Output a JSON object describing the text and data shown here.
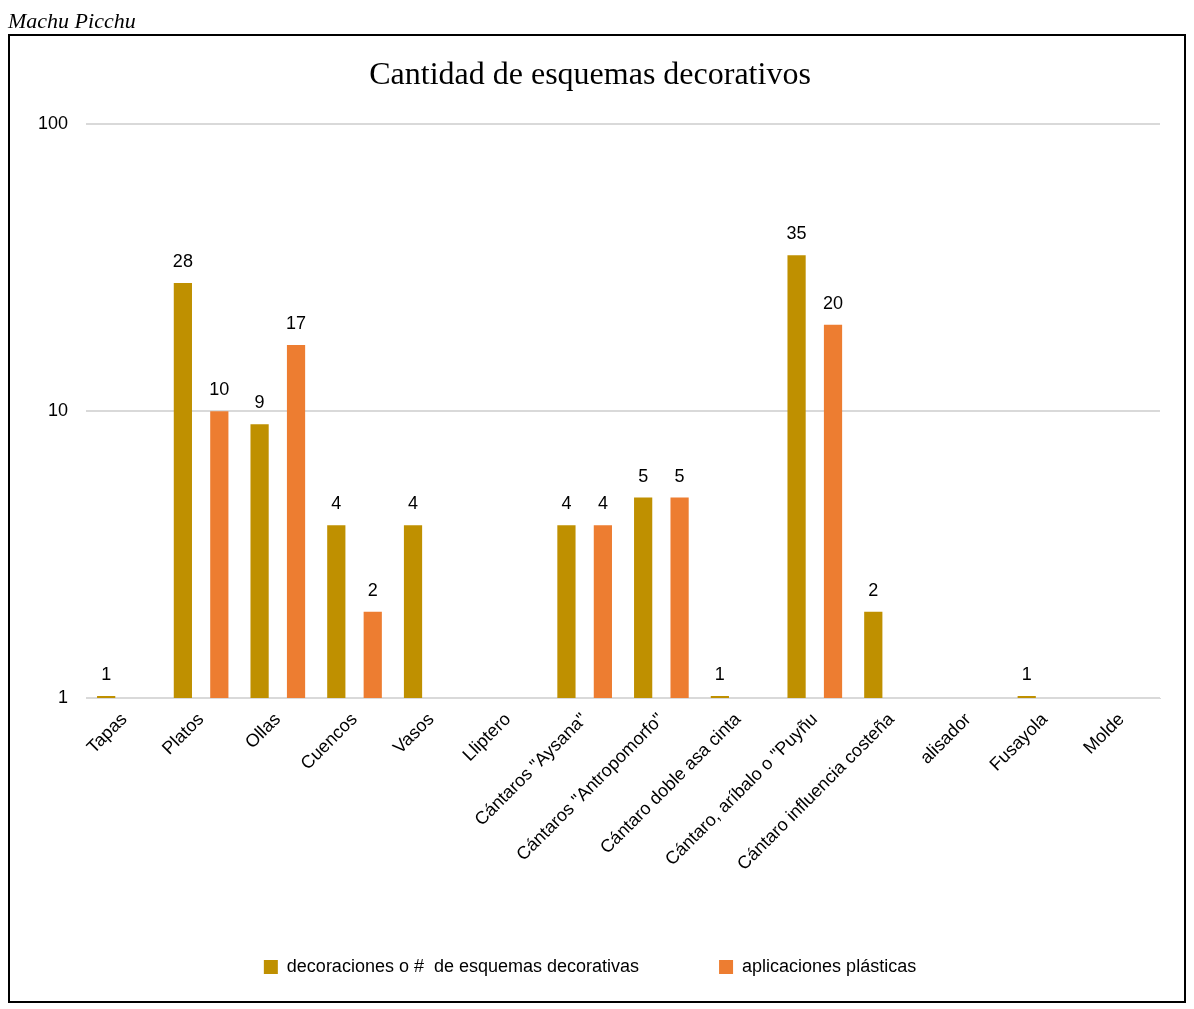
{
  "chart_data": {
    "type": "bar",
    "title": "Cantidad de esquemas decorativos",
    "annotations": [
      "Machu Picchu"
    ],
    "categories": [
      "Tapas",
      "Platos",
      "Ollas",
      "Cuencos",
      "Vasos",
      "Lliptero",
      "Cántaros \"Aysana\"",
      "Cántaros \"Antropomorfo\"",
      "Cántaro doble asa cinta",
      "Cántaro, aríbalo o \"Puyñu",
      "Cántaro influencia costeña",
      "alisador",
      "Fusayola",
      "Molde"
    ],
    "series": [
      {
        "name": "decoraciones o #  de esquemas decorativas",
        "color": "#bf9000",
        "values": [
          1,
          28,
          9,
          4,
          4,
          null,
          4,
          5,
          1,
          35,
          2,
          null,
          1,
          null
        ]
      },
      {
        "name": "aplicaciones plásticas",
        "color": "#ed7d31",
        "values": [
          null,
          10,
          17,
          2,
          null,
          null,
          4,
          5,
          null,
          20,
          null,
          null,
          null,
          null
        ]
      }
    ],
    "log": "y",
    "ylim": [
      1,
      100
    ],
    "yticks": [
      1,
      10,
      100
    ],
    "grid": "y",
    "legend": "bottom",
    "data_labels": true
  }
}
